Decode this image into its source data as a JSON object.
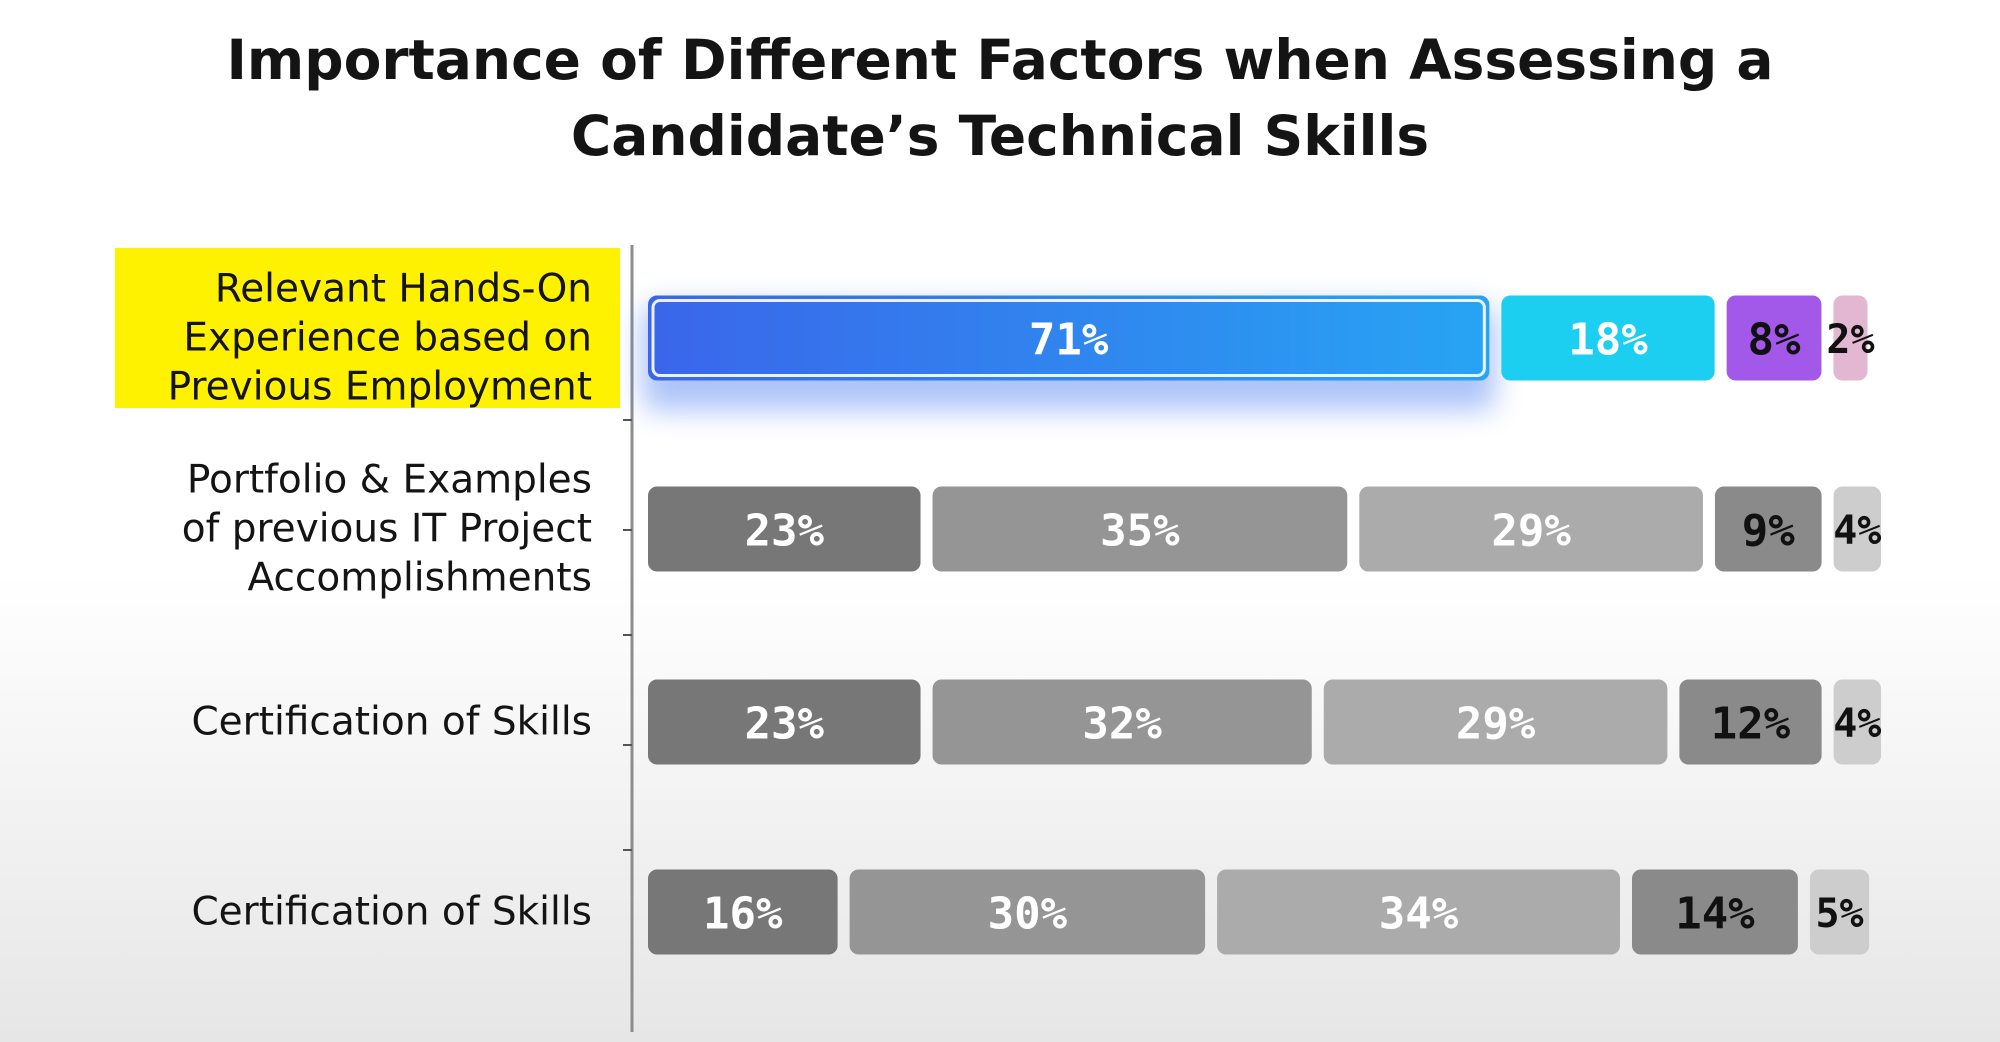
{
  "chart_data": {
    "type": "bar",
    "stacked": true,
    "orientation": "horizontal",
    "title_lines": [
      "Importance of Different Factors when Assessing a",
      "Candidate’s Technical Skills"
    ],
    "xlim": [
      0,
      100
    ],
    "legend": "none",
    "grid": false,
    "rows": [
      {
        "label": [
          "Relevant Hands-On",
          "Experience based on",
          "Previous Employment"
        ],
        "highlighted": true,
        "values": [
          71,
          18,
          8,
          2
        ],
        "labels": [
          "71%",
          "18%",
          "8%",
          "2%"
        ]
      },
      {
        "label": [
          "Portfolio & Examples",
          "of previous IT Project",
          "Accomplishments"
        ],
        "highlighted": false,
        "values": [
          23,
          35,
          29,
          9,
          4
        ],
        "labels": [
          "23%",
          "35%",
          "29%",
          "9%",
          "4%"
        ]
      },
      {
        "label": [
          "Certification of Skills"
        ],
        "highlighted": false,
        "values": [
          23,
          32,
          29,
          12,
          4
        ],
        "labels": [
          "23%",
          "32%",
          "29%",
          "12%",
          "4%"
        ]
      },
      {
        "label": [
          "Certification of Skills"
        ],
        "highlighted": false,
        "values": [
          16,
          30,
          34,
          14,
          5
        ],
        "labels": [
          "16%",
          "30%",
          "34%",
          "14%",
          "5%"
        ]
      }
    ],
    "colors": {
      "highlight_segments": [
        "#3e78ec",
        "#1ccff0",
        "#a259ea",
        "#e3b7d2"
      ],
      "highlight_text": [
        "#ffffff",
        "#ffffff",
        "#111111",
        "#111111"
      ],
      "gray_segments": [
        "#777777",
        "#959595",
        "#ababab",
        "#8a8a8a",
        "#cdcdcd"
      ],
      "gray_text": [
        "#ffffff",
        "#ffffff",
        "#ffffff",
        "#111111",
        "#111111"
      ],
      "label_highlight_bg": "#fff200",
      "axis": "#8c8c8c",
      "label_text": "#141414"
    }
  }
}
